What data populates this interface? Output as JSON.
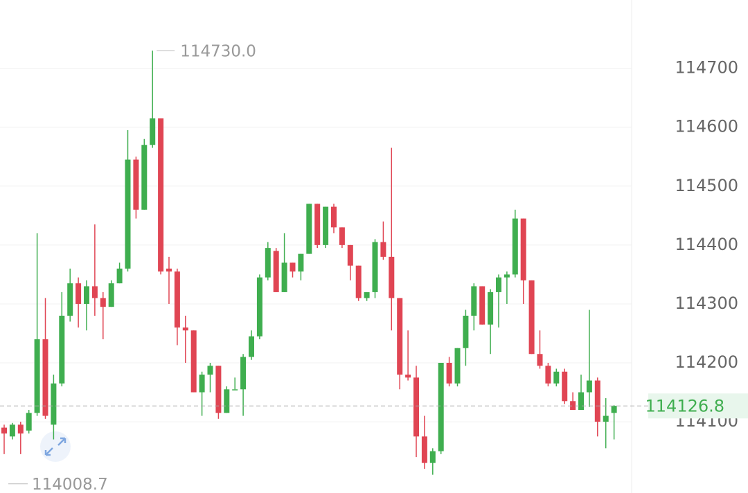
{
  "chart_data": {
    "type": "candlestick",
    "open": [
      114090,
      114075,
      114095,
      114085,
      114115,
      114240,
      114095,
      114165,
      114280,
      114335,
      114300,
      114330,
      114310,
      114295,
      114335,
      114360,
      114545,
      114460,
      114570,
      114615,
      114360,
      114355,
      114260,
      114255,
      114150,
      114180,
      114195,
      114115,
      114155,
      114155,
      114210,
      114245,
      114345,
      114390,
      114320,
      114370,
      114355,
      114385,
      114470,
      114400,
      114465,
      114430,
      114400,
      114365,
      114310,
      114320,
      114405,
      114380,
      114310,
      114180,
      114175,
      114075,
      114030,
      114050,
      114200,
      114165,
      114225,
      114280,
      114330,
      114265,
      114320,
      114345,
      114350,
      114445,
      114340,
      114215,
      114195,
      114165,
      114185,
      114135,
      114120,
      114150,
      114170,
      114100,
      114115
    ],
    "high": [
      114095,
      114098,
      114100,
      114120,
      114420,
      114310,
      114180,
      114320,
      114360,
      114345,
      114340,
      114435,
      114320,
      114340,
      114370,
      114595,
      114550,
      114580,
      114730,
      114615,
      114380,
      114360,
      114280,
      114255,
      114185,
      114200,
      114195,
      114160,
      114175,
      114215,
      114255,
      114350,
      114405,
      114395,
      114420,
      114370,
      114385,
      114470,
      114470,
      114465,
      114470,
      114430,
      114400,
      114365,
      114320,
      114410,
      114440,
      114565,
      114310,
      114255,
      114195,
      114110,
      114055,
      114200,
      114210,
      114225,
      114290,
      114335,
      114330,
      114325,
      114350,
      114355,
      114460,
      114445,
      114340,
      114255,
      114200,
      114190,
      114190,
      114150,
      114180,
      114290,
      114175,
      114140,
      114128
    ],
    "low": [
      114045,
      114070,
      114045,
      114080,
      114110,
      114105,
      114070,
      114160,
      114270,
      114260,
      114255,
      114280,
      114240,
      114295,
      114335,
      114355,
      114445,
      114460,
      114565,
      114350,
      114300,
      114230,
      114200,
      114150,
      114110,
      114150,
      114105,
      114115,
      114155,
      114110,
      114205,
      114240,
      114340,
      114320,
      114320,
      114345,
      114340,
      114385,
      114395,
      114395,
      114420,
      114395,
      114340,
      114305,
      114305,
      114310,
      114375,
      114255,
      114155,
      114170,
      114040,
      114020,
      114010,
      114045,
      114160,
      114160,
      114195,
      114255,
      114265,
      114215,
      114260,
      114300,
      114345,
      114300,
      114215,
      114190,
      114160,
      114160,
      114130,
      114120,
      114120,
      114125,
      114075,
      114055,
      114070
    ],
    "close": [
      114080,
      114095,
      114080,
      114115,
      114240,
      114110,
      114165,
      114280,
      114335,
      114300,
      114330,
      114310,
      114295,
      114335,
      114360,
      114545,
      114460,
      114570,
      114615,
      114355,
      114355,
      114260,
      114255,
      114150,
      114180,
      114195,
      114115,
      114155,
      114155,
      114210,
      114245,
      114345,
      114395,
      114320,
      114370,
      114355,
      114385,
      114470,
      114400,
      114465,
      114430,
      114400,
      114365,
      114310,
      114320,
      114405,
      114380,
      114310,
      114180,
      114175,
      114075,
      114030,
      114050,
      114200,
      114165,
      114225,
      114280,
      114330,
      114265,
      114320,
      114345,
      114350,
      114445,
      114340,
      114215,
      114195,
      114165,
      114185,
      114135,
      114120,
      114150,
      114170,
      114100,
      114110,
      114127
    ],
    "up_color": "#3fae4f",
    "down_color": "#e04553",
    "ylim": [
      113979,
      114816
    ],
    "yticks": [
      114100,
      114200,
      114300,
      114400,
      114500,
      114600,
      114700
    ],
    "grid": true,
    "high_label": 114730.0,
    "high_label_text": "114730.0",
    "low_label": 114008.7,
    "last_price": 114126.8
  }
}
